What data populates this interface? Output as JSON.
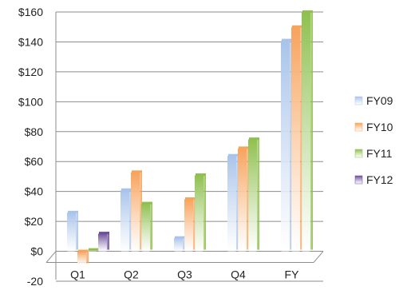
{
  "chart_data": {
    "type": "bar",
    "title": "",
    "xlabel": "",
    "ylabel": "",
    "categories": [
      "Q1",
      "Q2",
      "Q3",
      "Q4",
      "FY"
    ],
    "series": [
      {
        "name": "FY09",
        "values": [
          26,
          41,
          9,
          64,
          141
        ],
        "color": "#a9c4ea"
      },
      {
        "name": "FY10",
        "values": [
          -9,
          53,
          35,
          69,
          150
        ],
        "color": "#f7a35c"
      },
      {
        "name": "FY11",
        "values": [
          1,
          32,
          51,
          75,
          160
        ],
        "color": "#8fc04f"
      },
      {
        "name": "FY12",
        "values": [
          12,
          null,
          null,
          null,
          null
        ],
        "color": "#6c4f9a"
      }
    ],
    "ylim": [
      -20,
      160
    ],
    "y_ticks": [
      -20,
      0,
      20,
      40,
      60,
      80,
      100,
      120,
      140,
      160
    ],
    "y_tick_labels": [
      "-20",
      "$0",
      "$20",
      "$40",
      "$60",
      "$80",
      "$100",
      "$120",
      "$140",
      "$160"
    ],
    "grid": true,
    "legend": "right"
  }
}
